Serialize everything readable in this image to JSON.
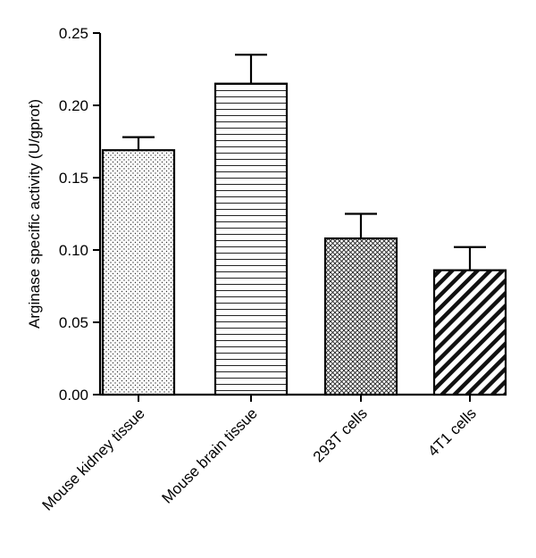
{
  "chart_data": {
    "type": "bar",
    "title": "",
    "xlabel": "",
    "ylabel": "Arginase specific activity (U/gprot)",
    "ylim": [
      0,
      0.25
    ],
    "yticks": [
      "0.00",
      "0.05",
      "0.10",
      "0.15",
      "0.20",
      "0.25"
    ],
    "categories": [
      "Mouse kidney tissue",
      "Mouse brain tissue",
      "293T cells",
      "4T1 cells"
    ],
    "values": [
      0.169,
      0.215,
      0.108,
      0.086
    ],
    "errors": [
      0.009,
      0.02,
      0.017,
      0.016
    ],
    "patterns": [
      "dots",
      "horizontal-lines",
      "crosshatch",
      "diagonal-stripes"
    ],
    "grid": false,
    "legend": "none"
  }
}
